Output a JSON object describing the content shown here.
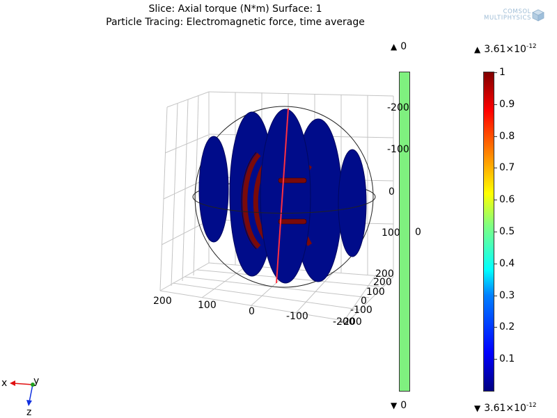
{
  "header": {
    "line1": "Slice: Axial torque (N*m)  Surface: 1",
    "line2": "Particle Tracing: Electromagnetic force, time average"
  },
  "logo": {
    "line1": "COMSOL",
    "line2": "MULTIPHYSICS"
  },
  "legend_green": {
    "max": "0",
    "mid": "0",
    "min": "0"
  },
  "legend_heat": {
    "max_base": "3.61×10",
    "max_exp": "-12",
    "min_base": "3.61×10",
    "min_exp": "-12",
    "ticks": [
      {
        "label": "1",
        "value": 1.0
      },
      {
        "label": "0.9",
        "value": 0.9
      },
      {
        "label": "0.8",
        "value": 0.8
      },
      {
        "label": "0.7",
        "value": 0.7
      },
      {
        "label": "0.6",
        "value": 0.6
      },
      {
        "label": "0.5",
        "value": 0.5
      },
      {
        "label": "0.4",
        "value": 0.4
      },
      {
        "label": "0.3",
        "value": 0.3
      },
      {
        "label": "0.2",
        "value": 0.2
      },
      {
        "label": "0.1",
        "value": 0.1
      }
    ]
  },
  "axes_3d": {
    "right_axis": [
      "-200",
      "-100",
      "0",
      "100",
      "200"
    ],
    "front_left_axis": [
      "200",
      "100",
      "0",
      "-100",
      "-200"
    ],
    "front_right_axis": [
      "200",
      "100",
      "0",
      "-100",
      "-200"
    ]
  },
  "triad": {
    "x": "x",
    "y": "y",
    "z": "z"
  },
  "colors": {
    "disk": "#000c8a",
    "coil": "#7a0a0a",
    "trace": "#ff3040",
    "green": "#7ff07f"
  }
}
